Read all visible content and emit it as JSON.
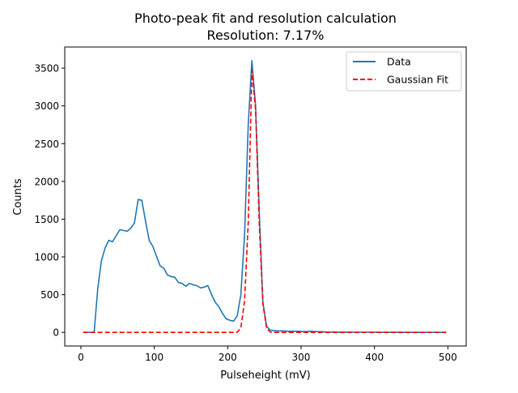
{
  "chart_data": {
    "type": "line",
    "title": "Photo-peak fit and resolution calculation",
    "subtitle": "Resolution: 7.17%",
    "xlabel": "Pulseheight (mV)",
    "ylabel": "Counts",
    "xlim": [
      -22,
      525
    ],
    "ylim": [
      -180,
      3780
    ],
    "xticks": [
      0,
      100,
      200,
      300,
      400,
      500
    ],
    "yticks": [
      0,
      500,
      1000,
      1500,
      2000,
      2500,
      3000,
      3500
    ],
    "grid": false,
    "legend_position": "top-right",
    "series": [
      {
        "name": "Data",
        "color": "#1f77b4",
        "style": "solid",
        "x": [
          3,
          8,
          13,
          18,
          23,
          28,
          33,
          38,
          43,
          48,
          53,
          58,
          63,
          68,
          73,
          78,
          83,
          88,
          93,
          98,
          103,
          108,
          113,
          118,
          123,
          128,
          133,
          138,
          143,
          148,
          153,
          158,
          163,
          168,
          173,
          178,
          183,
          188,
          193,
          198,
          203,
          208,
          213,
          218,
          223,
          228,
          233,
          238,
          243,
          248,
          253,
          258,
          263,
          268,
          273,
          278,
          283,
          288,
          293,
          298,
          303,
          308,
          313,
          318,
          323,
          328,
          333,
          338,
          343,
          348,
          353,
          358,
          363,
          368,
          373,
          378,
          383,
          388,
          393,
          398,
          403,
          408,
          413,
          418,
          423,
          428,
          433,
          438,
          443,
          448,
          453,
          458,
          463,
          468,
          473,
          478,
          483,
          488,
          493,
          498
        ],
        "y": [
          0,
          0,
          0,
          0,
          580,
          950,
          1120,
          1220,
          1200,
          1280,
          1360,
          1350,
          1340,
          1380,
          1450,
          1760,
          1750,
          1480,
          1220,
          1140,
          1010,
          880,
          850,
          760,
          740,
          730,
          660,
          650,
          610,
          650,
          630,
          620,
          590,
          600,
          620,
          500,
          400,
          340,
          250,
          180,
          160,
          150,
          220,
          500,
          1300,
          2750,
          3600,
          3000,
          1600,
          400,
          80,
          30,
          25,
          20,
          20,
          20,
          15,
          15,
          15,
          15,
          10,
          12,
          15,
          12,
          10,
          10,
          5,
          5,
          5,
          5,
          3,
          3,
          3,
          3,
          2,
          2,
          2,
          2,
          2,
          2,
          1,
          1,
          1,
          1,
          1,
          1,
          1,
          1,
          0,
          0,
          0,
          0,
          0,
          0,
          0,
          0,
          0,
          0,
          0,
          0
        ]
      },
      {
        "name": "Gaussian Fit",
        "color": "#ff0000",
        "style": "dashed",
        "x": [
          3,
          8,
          13,
          18,
          23,
          28,
          33,
          38,
          43,
          48,
          53,
          58,
          63,
          68,
          73,
          78,
          83,
          88,
          93,
          98,
          103,
          108,
          113,
          118,
          123,
          128,
          133,
          138,
          143,
          148,
          153,
          158,
          163,
          168,
          173,
          178,
          183,
          188,
          193,
          198,
          203,
          208,
          213,
          218,
          223,
          228,
          233,
          238,
          243,
          248,
          253,
          258,
          263,
          268,
          273,
          278,
          283,
          288,
          293,
          298,
          303,
          308,
          313,
          318,
          323,
          328,
          333,
          338,
          343,
          348,
          353,
          358,
          363,
          368,
          373,
          378,
          383,
          388,
          393,
          398,
          403,
          408,
          413,
          418,
          423,
          428,
          433,
          438,
          443,
          448,
          453,
          458,
          463,
          468,
          473,
          478,
          483,
          488,
          493,
          498
        ],
        "y": [
          0,
          0,
          0,
          0,
          0,
          0,
          0,
          0,
          0,
          0,
          0,
          0,
          0,
          0,
          0,
          0,
          0,
          0,
          0,
          0,
          0,
          0,
          0,
          0,
          0,
          0,
          0,
          0,
          0,
          0,
          0,
          0,
          0,
          0,
          0,
          0,
          0,
          0,
          0,
          0,
          0,
          0,
          2,
          60,
          420,
          1450,
          3470,
          2950,
          1450,
          380,
          55,
          5,
          0,
          0,
          0,
          0,
          0,
          0,
          0,
          0,
          0,
          0,
          0,
          0,
          0,
          0,
          0,
          0,
          0,
          0,
          0,
          0,
          0,
          0,
          0,
          0,
          0,
          0,
          0,
          0,
          0,
          0,
          0,
          0,
          0,
          0,
          0,
          0,
          0,
          0,
          0,
          0,
          0,
          0,
          0,
          0,
          0,
          0,
          0,
          0
        ]
      }
    ]
  }
}
